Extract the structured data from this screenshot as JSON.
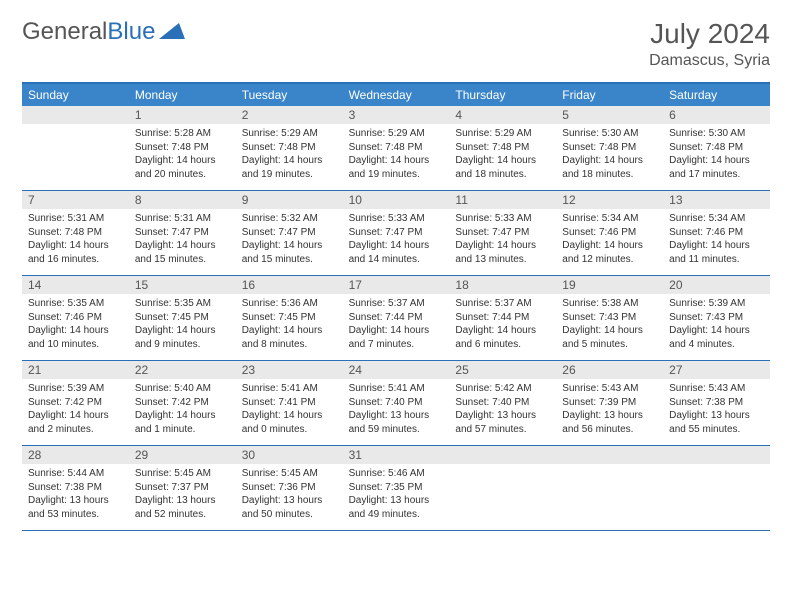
{
  "logo": {
    "part1": "General",
    "part2": "Blue"
  },
  "title": "July 2024",
  "location": "Damascus, Syria",
  "header_bg": "#3a85c9",
  "border_color": "#2a70b8",
  "daynum_bg": "#e9e9e9",
  "dow": [
    "Sunday",
    "Monday",
    "Tuesday",
    "Wednesday",
    "Thursday",
    "Friday",
    "Saturday"
  ],
  "weeks": [
    [
      null,
      {
        "n": "1",
        "sr": "5:28 AM",
        "ss": "7:48 PM",
        "dl": "14 hours and 20 minutes."
      },
      {
        "n": "2",
        "sr": "5:29 AM",
        "ss": "7:48 PM",
        "dl": "14 hours and 19 minutes."
      },
      {
        "n": "3",
        "sr": "5:29 AM",
        "ss": "7:48 PM",
        "dl": "14 hours and 19 minutes."
      },
      {
        "n": "4",
        "sr": "5:29 AM",
        "ss": "7:48 PM",
        "dl": "14 hours and 18 minutes."
      },
      {
        "n": "5",
        "sr": "5:30 AM",
        "ss": "7:48 PM",
        "dl": "14 hours and 18 minutes."
      },
      {
        "n": "6",
        "sr": "5:30 AM",
        "ss": "7:48 PM",
        "dl": "14 hours and 17 minutes."
      }
    ],
    [
      {
        "n": "7",
        "sr": "5:31 AM",
        "ss": "7:48 PM",
        "dl": "14 hours and 16 minutes."
      },
      {
        "n": "8",
        "sr": "5:31 AM",
        "ss": "7:47 PM",
        "dl": "14 hours and 15 minutes."
      },
      {
        "n": "9",
        "sr": "5:32 AM",
        "ss": "7:47 PM",
        "dl": "14 hours and 15 minutes."
      },
      {
        "n": "10",
        "sr": "5:33 AM",
        "ss": "7:47 PM",
        "dl": "14 hours and 14 minutes."
      },
      {
        "n": "11",
        "sr": "5:33 AM",
        "ss": "7:47 PM",
        "dl": "14 hours and 13 minutes."
      },
      {
        "n": "12",
        "sr": "5:34 AM",
        "ss": "7:46 PM",
        "dl": "14 hours and 12 minutes."
      },
      {
        "n": "13",
        "sr": "5:34 AM",
        "ss": "7:46 PM",
        "dl": "14 hours and 11 minutes."
      }
    ],
    [
      {
        "n": "14",
        "sr": "5:35 AM",
        "ss": "7:46 PM",
        "dl": "14 hours and 10 minutes."
      },
      {
        "n": "15",
        "sr": "5:35 AM",
        "ss": "7:45 PM",
        "dl": "14 hours and 9 minutes."
      },
      {
        "n": "16",
        "sr": "5:36 AM",
        "ss": "7:45 PM",
        "dl": "14 hours and 8 minutes."
      },
      {
        "n": "17",
        "sr": "5:37 AM",
        "ss": "7:44 PM",
        "dl": "14 hours and 7 minutes."
      },
      {
        "n": "18",
        "sr": "5:37 AM",
        "ss": "7:44 PM",
        "dl": "14 hours and 6 minutes."
      },
      {
        "n": "19",
        "sr": "5:38 AM",
        "ss": "7:43 PM",
        "dl": "14 hours and 5 minutes."
      },
      {
        "n": "20",
        "sr": "5:39 AM",
        "ss": "7:43 PM",
        "dl": "14 hours and 4 minutes."
      }
    ],
    [
      {
        "n": "21",
        "sr": "5:39 AM",
        "ss": "7:42 PM",
        "dl": "14 hours and 2 minutes."
      },
      {
        "n": "22",
        "sr": "5:40 AM",
        "ss": "7:42 PM",
        "dl": "14 hours and 1 minute."
      },
      {
        "n": "23",
        "sr": "5:41 AM",
        "ss": "7:41 PM",
        "dl": "14 hours and 0 minutes."
      },
      {
        "n": "24",
        "sr": "5:41 AM",
        "ss": "7:40 PM",
        "dl": "13 hours and 59 minutes."
      },
      {
        "n": "25",
        "sr": "5:42 AM",
        "ss": "7:40 PM",
        "dl": "13 hours and 57 minutes."
      },
      {
        "n": "26",
        "sr": "5:43 AM",
        "ss": "7:39 PM",
        "dl": "13 hours and 56 minutes."
      },
      {
        "n": "27",
        "sr": "5:43 AM",
        "ss": "7:38 PM",
        "dl": "13 hours and 55 minutes."
      }
    ],
    [
      {
        "n": "28",
        "sr": "5:44 AM",
        "ss": "7:38 PM",
        "dl": "13 hours and 53 minutes."
      },
      {
        "n": "29",
        "sr": "5:45 AM",
        "ss": "7:37 PM",
        "dl": "13 hours and 52 minutes."
      },
      {
        "n": "30",
        "sr": "5:45 AM",
        "ss": "7:36 PM",
        "dl": "13 hours and 50 minutes."
      },
      {
        "n": "31",
        "sr": "5:46 AM",
        "ss": "7:35 PM",
        "dl": "13 hours and 49 minutes."
      },
      null,
      null,
      null
    ]
  ],
  "labels": {
    "sunrise": "Sunrise:",
    "sunset": "Sunset:",
    "daylight": "Daylight:"
  }
}
